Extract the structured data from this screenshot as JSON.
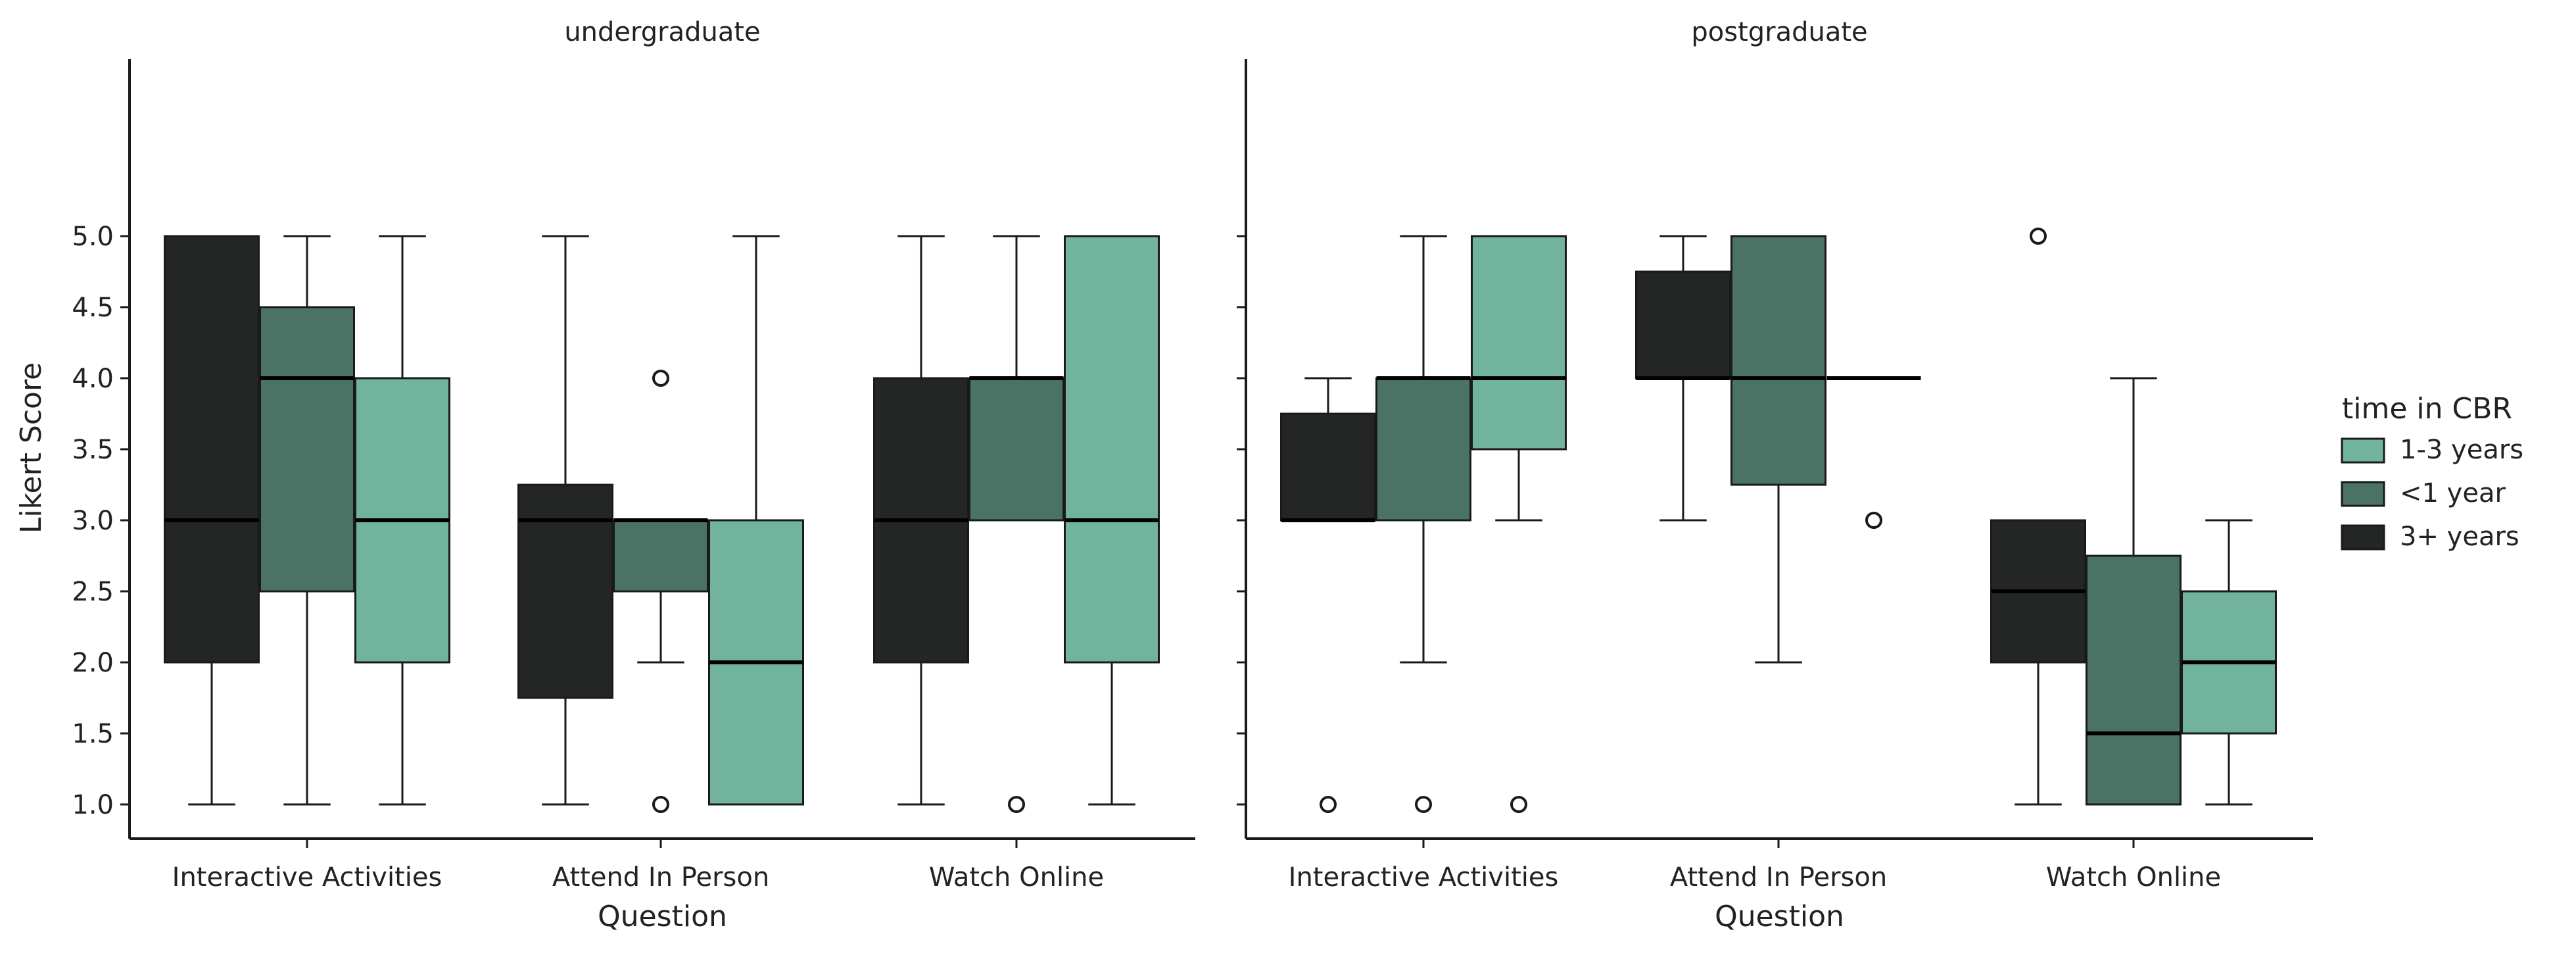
{
  "chart_data": {
    "type": "boxplot",
    "ylabel": "Likert Score",
    "xlabel": "Question",
    "ylim": [
      0.8,
      5.2
    ],
    "yticks": [
      "1.0",
      "1.5",
      "2.0",
      "2.5",
      "3.0",
      "3.5",
      "4.0",
      "4.5",
      "5.0"
    ],
    "categories": [
      "Interactive Activities",
      "Attend In Person",
      "Watch Online"
    ],
    "legend": {
      "title": "time in CBR",
      "placement": "right",
      "entries": [
        {
          "name": "1-3 years",
          "color": "#71b39d"
        },
        {
          "name": "<1 year",
          "color": "#4a7366"
        },
        {
          "name": "3+ years",
          "color": "#232625"
        }
      ]
    },
    "hue_order": [
      "3+ years",
      "<1 year",
      "1-3 years"
    ],
    "colors": {
      "3+ years": "#232625",
      "<1 year": "#4a7366",
      "1-3 years": "#71b39d"
    },
    "panels": [
      {
        "title": "undergraduate",
        "groups": [
          {
            "category": "Interactive Activities",
            "hue": "3+ years",
            "whislo": 1.0,
            "q1": 2.0,
            "med": 3.0,
            "q3": 5.0,
            "whishi": 5.0,
            "fliers": []
          },
          {
            "category": "Interactive Activities",
            "hue": "<1 year",
            "whislo": 1.0,
            "q1": 2.5,
            "med": 4.0,
            "q3": 4.5,
            "whishi": 5.0,
            "fliers": []
          },
          {
            "category": "Interactive Activities",
            "hue": "1-3 years",
            "whislo": 1.0,
            "q1": 2.0,
            "med": 3.0,
            "q3": 4.0,
            "whishi": 5.0,
            "fliers": []
          },
          {
            "category": "Attend In Person",
            "hue": "3+ years",
            "whislo": 1.0,
            "q1": 1.75,
            "med": 3.0,
            "q3": 3.25,
            "whishi": 5.0,
            "fliers": []
          },
          {
            "category": "Attend In Person",
            "hue": "<1 year",
            "whislo": 2.0,
            "q1": 2.5,
            "med": 3.0,
            "q3": 3.0,
            "whishi": 3.0,
            "fliers": [
              4.0,
              1.0
            ]
          },
          {
            "category": "Attend In Person",
            "hue": "1-3 years",
            "whislo": 1.0,
            "q1": 1.0,
            "med": 2.0,
            "q3": 3.0,
            "whishi": 5.0,
            "fliers": []
          },
          {
            "category": "Watch Online",
            "hue": "3+ years",
            "whislo": 1.0,
            "q1": 2.0,
            "med": 3.0,
            "q3": 4.0,
            "whishi": 5.0,
            "fliers": []
          },
          {
            "category": "Watch Online",
            "hue": "<1 year",
            "whislo": 3.0,
            "q1": 3.0,
            "med": 4.0,
            "q3": 4.0,
            "whishi": 5.0,
            "fliers": [
              1.0
            ]
          },
          {
            "category": "Watch Online",
            "hue": "1-3 years",
            "whislo": 1.0,
            "q1": 2.0,
            "med": 3.0,
            "q3": 5.0,
            "whishi": 5.0,
            "fliers": []
          }
        ]
      },
      {
        "title": "postgraduate",
        "groups": [
          {
            "category": "Interactive Activities",
            "hue": "3+ years",
            "whislo": 3.0,
            "q1": 3.0,
            "med": 3.0,
            "q3": 3.75,
            "whishi": 4.0,
            "fliers": [
              1.0
            ]
          },
          {
            "category": "Interactive Activities",
            "hue": "<1 year",
            "whislo": 2.0,
            "q1": 3.0,
            "med": 4.0,
            "q3": 4.0,
            "whishi": 5.0,
            "fliers": [
              1.0
            ]
          },
          {
            "category": "Interactive Activities",
            "hue": "1-3 years",
            "whislo": 3.0,
            "q1": 3.5,
            "med": 4.0,
            "q3": 5.0,
            "whishi": 5.0,
            "fliers": [
              1.0
            ]
          },
          {
            "category": "Attend In Person",
            "hue": "3+ years",
            "whislo": 3.0,
            "q1": 4.0,
            "med": 4.0,
            "q3": 4.75,
            "whishi": 5.0,
            "fliers": []
          },
          {
            "category": "Attend In Person",
            "hue": "<1 year",
            "whislo": 2.0,
            "q1": 3.25,
            "med": 4.0,
            "q3": 5.0,
            "whishi": 5.0,
            "fliers": []
          },
          {
            "category": "Attend In Person",
            "hue": "1-3 years",
            "whislo": 4.0,
            "q1": 4.0,
            "med": 4.0,
            "q3": 4.0,
            "whishi": 4.0,
            "fliers": [
              3.0
            ]
          },
          {
            "category": "Watch Online",
            "hue": "3+ years",
            "whislo": 1.0,
            "q1": 2.0,
            "med": 2.5,
            "q3": 3.0,
            "whishi": 3.0,
            "fliers": [
              5.0
            ]
          },
          {
            "category": "Watch Online",
            "hue": "<1 year",
            "whislo": 1.0,
            "q1": 1.0,
            "med": 1.5,
            "q3": 2.75,
            "whishi": 4.0,
            "fliers": []
          },
          {
            "category": "Watch Online",
            "hue": "1-3 years",
            "whislo": 1.0,
            "q1": 1.5,
            "med": 2.0,
            "q3": 2.5,
            "whishi": 3.0,
            "fliers": []
          }
        ]
      }
    ]
  }
}
